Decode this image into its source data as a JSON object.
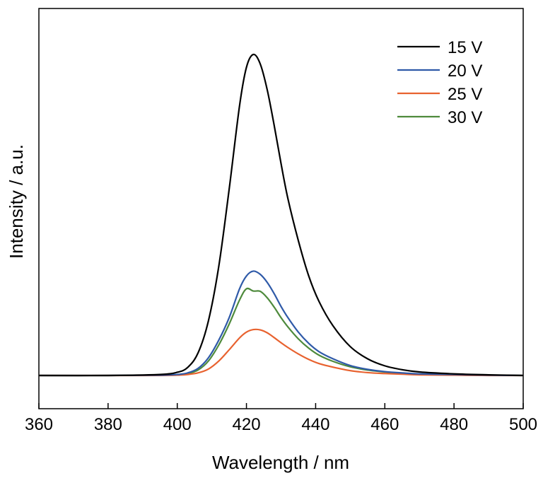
{
  "chart_data": {
    "type": "line",
    "title": "",
    "xlabel": "Wavelength / nm",
    "ylabel": "Intensity / a.u.",
    "xlim": [
      360,
      500
    ],
    "ylim": [
      -0.1,
      1.2
    ],
    "x_ticks": [
      "360",
      "380",
      "400",
      "420",
      "440",
      "460",
      "480",
      "500"
    ],
    "y_ticks_shown": false,
    "grid": false,
    "legend_position": "top-right",
    "series": [
      {
        "name": "15 V",
        "color": "#000000",
        "x": [
          360,
          380,
          395,
          400,
          403,
          406,
          409,
          412,
          415,
          418,
          420,
          422,
          424,
          426,
          428,
          430,
          432,
          435,
          438,
          441,
          445,
          450,
          455,
          460,
          465,
          470,
          480,
          490,
          500
        ],
        "y": [
          0,
          0,
          0.003,
          0.01,
          0.025,
          0.07,
          0.17,
          0.34,
          0.58,
          0.84,
          0.96,
          1.0,
          0.97,
          0.89,
          0.78,
          0.66,
          0.55,
          0.42,
          0.31,
          0.23,
          0.155,
          0.09,
          0.052,
          0.03,
          0.018,
          0.011,
          0.005,
          0.002,
          0
        ]
      },
      {
        "name": "20 V",
        "color": "#2f5aa8",
        "x": [
          360,
          380,
          395,
          400,
          403,
          406,
          409,
          412,
          415,
          418,
          420,
          422,
          424,
          426,
          428,
          430,
          432,
          435,
          438,
          441,
          445,
          450,
          455,
          460,
          465,
          470,
          480,
          490,
          500
        ],
        "y": [
          0,
          0,
          0.001,
          0.003,
          0.008,
          0.022,
          0.055,
          0.11,
          0.18,
          0.27,
          0.31,
          0.325,
          0.315,
          0.29,
          0.255,
          0.215,
          0.18,
          0.135,
          0.1,
          0.074,
          0.052,
          0.031,
          0.019,
          0.012,
          0.008,
          0.005,
          0.003,
          0.001,
          0
        ]
      },
      {
        "name": "25 V",
        "color": "#e8622f",
        "x": [
          360,
          380,
          395,
          400,
          403,
          406,
          409,
          412,
          415,
          418,
          420,
          422,
          424,
          426,
          428,
          430,
          432,
          435,
          438,
          441,
          445,
          450,
          455,
          460,
          465,
          470,
          480,
          490,
          500
        ],
        "y": [
          0,
          0,
          0,
          0.001,
          0.003,
          0.008,
          0.02,
          0.045,
          0.08,
          0.117,
          0.135,
          0.143,
          0.142,
          0.133,
          0.118,
          0.102,
          0.087,
          0.067,
          0.05,
          0.037,
          0.026,
          0.015,
          0.009,
          0.006,
          0.004,
          0.002,
          0.001,
          0,
          0
        ]
      },
      {
        "name": "30 V",
        "color": "#4e8a3c",
        "x": [
          360,
          380,
          395,
          400,
          403,
          406,
          409,
          412,
          415,
          418,
          420,
          422,
          424,
          426,
          428,
          430,
          432,
          435,
          438,
          441,
          445,
          450,
          455,
          460,
          465,
          470,
          480,
          490,
          500
        ],
        "y": [
          0,
          0,
          0.001,
          0.002,
          0.006,
          0.017,
          0.045,
          0.095,
          0.16,
          0.235,
          0.27,
          0.263,
          0.262,
          0.242,
          0.213,
          0.18,
          0.151,
          0.114,
          0.085,
          0.063,
          0.044,
          0.027,
          0.017,
          0.011,
          0.007,
          0.004,
          0.002,
          0.001,
          0
        ]
      }
    ]
  }
}
